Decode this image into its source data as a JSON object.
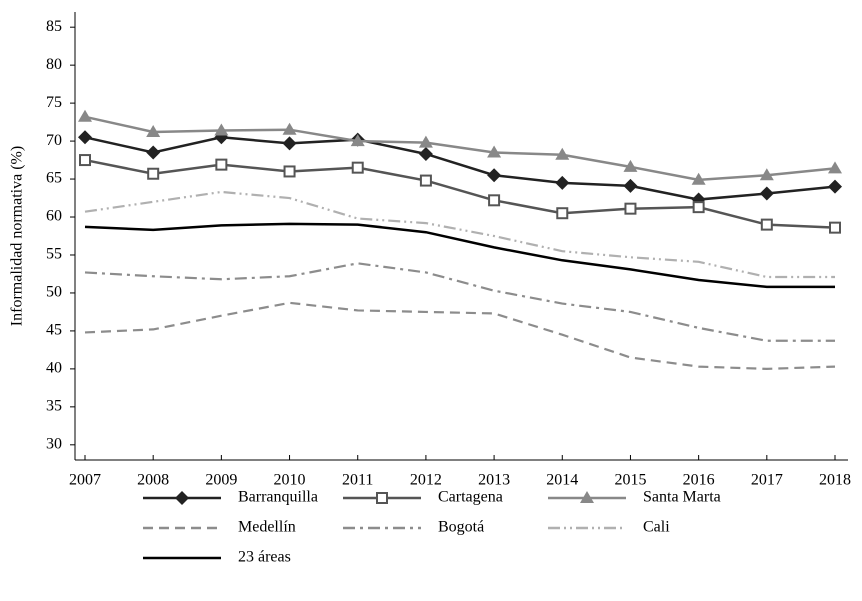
{
  "chart_data": {
    "type": "line",
    "y_label": "Informalidad normativa (%)",
    "categories": [
      "2007",
      "2008",
      "2009",
      "2010",
      "2011",
      "2012",
      "2013",
      "2014",
      "2015",
      "2016",
      "2017",
      "2018"
    ],
    "ylim": [
      28,
      87
    ],
    "yticks": [
      30,
      35,
      40,
      45,
      50,
      55,
      60,
      65,
      70,
      75,
      80,
      85
    ],
    "legend": "bottom",
    "series": [
      {
        "name": "Barranquilla",
        "color": "#222222",
        "marker": "diamond",
        "dash": "solid",
        "values": [
          70.5,
          68.5,
          70.5,
          69.7,
          70.2,
          68.3,
          65.5,
          64.5,
          64.1,
          62.3,
          63.1,
          64.0
        ]
      },
      {
        "name": "Cartagena",
        "color": "#555555",
        "marker": "square",
        "dash": "solid",
        "values": [
          67.5,
          65.7,
          66.9,
          66.0,
          66.5,
          64.8,
          62.2,
          60.5,
          61.1,
          61.3,
          59.0,
          58.6
        ]
      },
      {
        "name": "Santa Marta",
        "color": "#888888",
        "marker": "triangle",
        "dash": "solid",
        "values": [
          73.2,
          71.2,
          71.4,
          71.5,
          70.0,
          69.8,
          68.5,
          68.2,
          66.6,
          64.9,
          65.5,
          66.4
        ]
      },
      {
        "name": "Medellín",
        "color": "#8c8c8c",
        "marker": "none",
        "dash": "dashed",
        "values": [
          44.8,
          45.2,
          47.0,
          48.7,
          47.7,
          47.5,
          47.3,
          44.5,
          41.5,
          40.3,
          40.0,
          40.3
        ]
      },
      {
        "name": "Bogotá",
        "color": "#8c8c8c",
        "marker": "none",
        "dash": "dashdot",
        "values": [
          52.7,
          52.2,
          51.8,
          52.2,
          53.9,
          52.7,
          50.3,
          48.6,
          47.5,
          45.4,
          43.7,
          43.7
        ]
      },
      {
        "name": "Cali",
        "color": "#b0b0b0",
        "marker": "none",
        "dash": "dashdotdot",
        "values": [
          60.7,
          62.0,
          63.3,
          62.5,
          59.8,
          59.2,
          57.5,
          55.5,
          54.7,
          54.1,
          52.1,
          52.1
        ]
      },
      {
        "name": "23 áreas",
        "color": "#000000",
        "marker": "none",
        "dash": "solid",
        "values": [
          58.7,
          58.3,
          58.9,
          59.1,
          59.0,
          58.0,
          56.0,
          54.3,
          53.1,
          51.7,
          50.8,
          50.8
        ]
      }
    ]
  }
}
